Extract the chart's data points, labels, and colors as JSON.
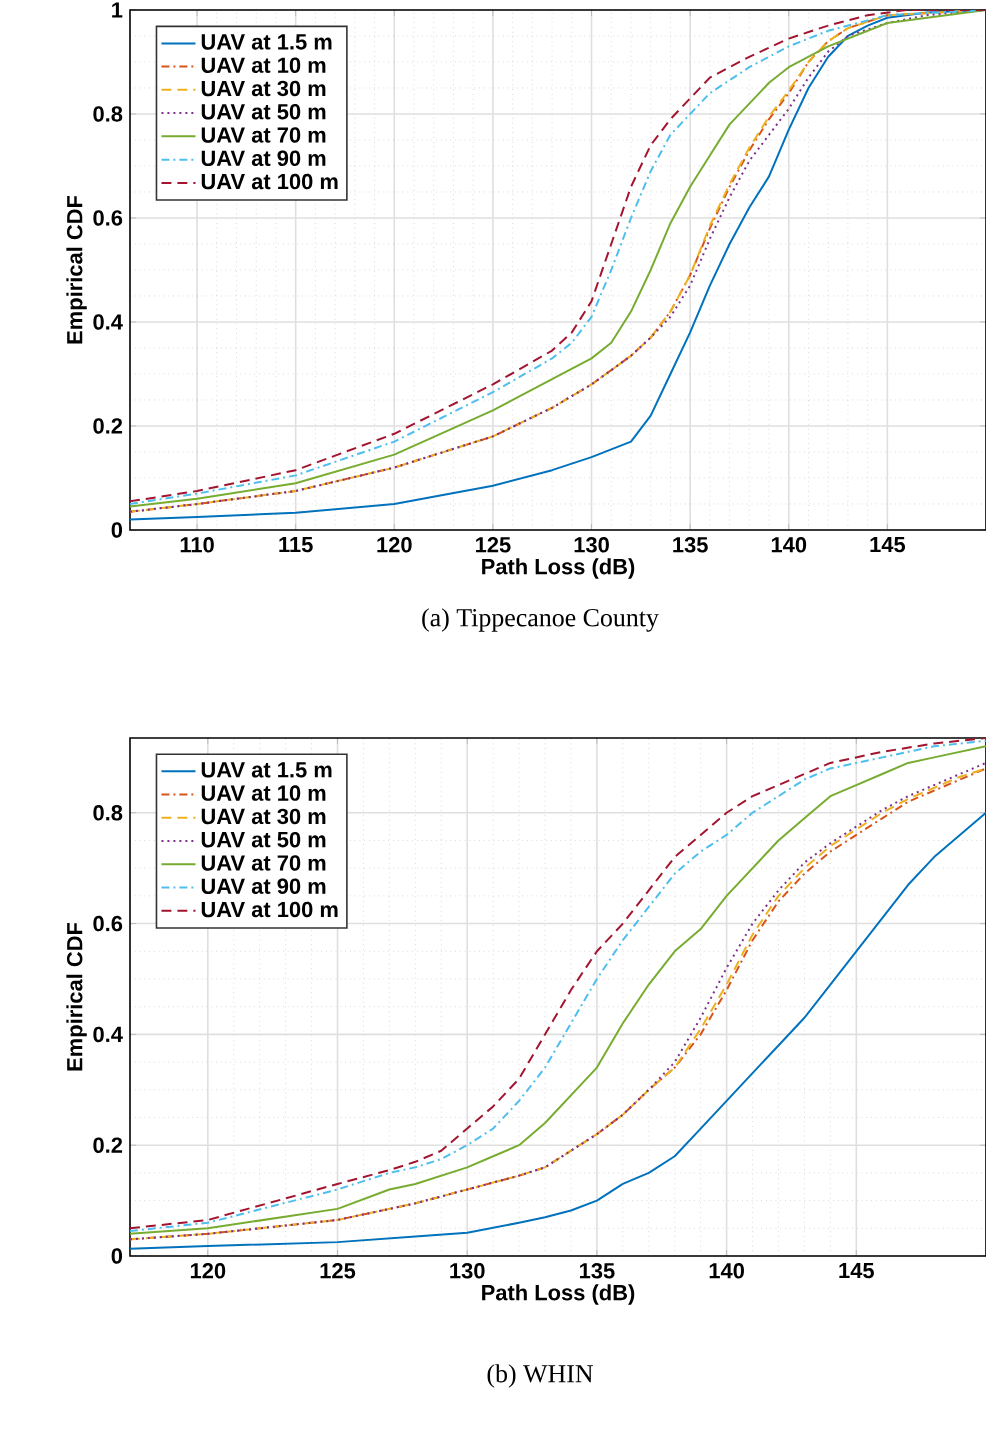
{
  "chart_data": [
    {
      "type": "line",
      "title": "(a) Tippecanoe County",
      "xlabel": "Path Loss (dB)",
      "ylabel": "Empirical CDF",
      "xlim": [
        106.6,
        150
      ],
      "ylim": [
        0,
        1
      ],
      "xticks": [
        110,
        115,
        120,
        125,
        130,
        135,
        140,
        145
      ],
      "yticks": [
        0,
        0.2,
        0.4,
        0.6,
        0.8,
        1
      ],
      "grid": true,
      "legend": "top left",
      "series": [
        {
          "name": "UAV at 1.5 m",
          "color": "#0072bd",
          "line_style": "solid",
          "x": [
            106.6,
            110,
            115,
            120,
            125,
            128,
            130,
            131,
            132,
            133,
            134,
            135,
            136,
            137,
            138,
            139,
            140,
            141,
            142,
            143,
            144,
            145,
            147,
            150
          ],
          "values": [
            0.02,
            0.025,
            0.033,
            0.05,
            0.085,
            0.115,
            0.14,
            0.155,
            0.17,
            0.22,
            0.3,
            0.38,
            0.47,
            0.55,
            0.62,
            0.68,
            0.77,
            0.85,
            0.91,
            0.95,
            0.97,
            0.985,
            0.995,
            1
          ]
        },
        {
          "name": "UAV at 10 m",
          "color": "#d95319",
          "line_style": "dashdot",
          "x": [
            106.6,
            110,
            115,
            120,
            125,
            128,
            130,
            132,
            133,
            134,
            135,
            136,
            137,
            138,
            139,
            140,
            141,
            142,
            143,
            145,
            150
          ],
          "values": [
            0.035,
            0.05,
            0.075,
            0.12,
            0.18,
            0.235,
            0.28,
            0.335,
            0.37,
            0.42,
            0.49,
            0.58,
            0.66,
            0.73,
            0.79,
            0.84,
            0.9,
            0.94,
            0.965,
            0.99,
            1
          ]
        },
        {
          "name": "UAV at 30 m",
          "color": "#edb120",
          "line_style": "dashed",
          "x": [
            106.6,
            110,
            115,
            120,
            125,
            128,
            130,
            132,
            133,
            134,
            135,
            136,
            137,
            138,
            139,
            140,
            141,
            142,
            143,
            145,
            150
          ],
          "values": [
            0.035,
            0.05,
            0.075,
            0.12,
            0.18,
            0.235,
            0.28,
            0.335,
            0.37,
            0.42,
            0.49,
            0.585,
            0.665,
            0.735,
            0.795,
            0.845,
            0.9,
            0.94,
            0.965,
            0.99,
            1
          ]
        },
        {
          "name": "UAV at 50 m",
          "color": "#7e2f8e",
          "line_style": "dotted",
          "x": [
            106.6,
            110,
            115,
            120,
            125,
            128,
            130,
            132,
            133,
            134,
            135,
            136,
            137,
            138,
            139,
            140,
            141,
            142,
            143,
            145,
            147,
            150
          ],
          "values": [
            0.035,
            0.05,
            0.075,
            0.12,
            0.18,
            0.235,
            0.28,
            0.335,
            0.37,
            0.41,
            0.47,
            0.56,
            0.64,
            0.71,
            0.76,
            0.81,
            0.87,
            0.92,
            0.95,
            0.975,
            0.99,
            1
          ]
        },
        {
          "name": "UAV at 70 m",
          "color": "#77ac30",
          "line_style": "solid",
          "x": [
            106.6,
            110,
            115,
            120,
            125,
            128,
            130,
            131,
            132,
            133,
            134,
            135,
            136,
            137,
            138,
            139,
            140,
            142,
            145,
            150
          ],
          "values": [
            0.045,
            0.06,
            0.09,
            0.145,
            0.23,
            0.29,
            0.33,
            0.36,
            0.42,
            0.5,
            0.59,
            0.66,
            0.72,
            0.78,
            0.82,
            0.86,
            0.89,
            0.93,
            0.975,
            1
          ]
        },
        {
          "name": "UAV at 90 m",
          "color": "#4dbeee",
          "line_style": "dashdot",
          "x": [
            106.6,
            110,
            115,
            120,
            125,
            128,
            129,
            130,
            131,
            132,
            133,
            134,
            135,
            136,
            138,
            140,
            142,
            145,
            150
          ],
          "values": [
            0.05,
            0.07,
            0.105,
            0.17,
            0.265,
            0.33,
            0.36,
            0.41,
            0.5,
            0.6,
            0.69,
            0.76,
            0.8,
            0.84,
            0.89,
            0.93,
            0.96,
            0.99,
            1
          ]
        },
        {
          "name": "UAV at 100 m",
          "color": "#a2142f",
          "line_style": "dashed",
          "x": [
            106.6,
            110,
            115,
            120,
            125,
            128,
            129,
            130,
            131,
            132,
            133,
            134,
            135,
            136,
            138,
            140,
            142,
            144,
            146,
            150
          ],
          "values": [
            0.055,
            0.075,
            0.115,
            0.185,
            0.28,
            0.345,
            0.38,
            0.44,
            0.55,
            0.66,
            0.74,
            0.79,
            0.83,
            0.87,
            0.91,
            0.945,
            0.97,
            0.99,
            1,
            1
          ]
        }
      ]
    },
    {
      "type": "line",
      "title": "(b) WHIN",
      "xlabel": "Path Loss (dB)",
      "ylabel": "Empirical CDF",
      "xlim": [
        117,
        150
      ],
      "ylim": [
        0,
        0.935
      ],
      "xticks": [
        120,
        125,
        130,
        135,
        140,
        145
      ],
      "yticks": [
        0,
        0.2,
        0.4,
        0.6,
        0.8
      ],
      "grid": true,
      "legend": "top left",
      "series": [
        {
          "name": "UAV at 1.5 m",
          "color": "#0072bd",
          "line_style": "solid",
          "x": [
            117,
            120,
            125,
            128,
            130,
            132,
            133,
            134,
            135,
            136,
            137,
            138,
            139,
            140,
            141,
            142,
            143,
            144,
            145,
            146,
            147,
            148,
            149,
            150
          ],
          "values": [
            0.013,
            0.018,
            0.025,
            0.035,
            0.042,
            0.06,
            0.07,
            0.082,
            0.1,
            0.13,
            0.15,
            0.18,
            0.23,
            0.28,
            0.33,
            0.38,
            0.43,
            0.49,
            0.55,
            0.61,
            0.67,
            0.72,
            0.76,
            0.8
          ]
        },
        {
          "name": "UAV at 10 m",
          "color": "#d95319",
          "line_style": "dashdot",
          "x": [
            117,
            120,
            125,
            128,
            130,
            132,
            133,
            134,
            135,
            136,
            137,
            138,
            139,
            140,
            141,
            142,
            143,
            144,
            145,
            146,
            147,
            148,
            149,
            150
          ],
          "values": [
            0.03,
            0.04,
            0.065,
            0.095,
            0.12,
            0.145,
            0.16,
            0.19,
            0.22,
            0.255,
            0.3,
            0.34,
            0.4,
            0.48,
            0.57,
            0.64,
            0.69,
            0.73,
            0.76,
            0.79,
            0.82,
            0.84,
            0.86,
            0.88
          ]
        },
        {
          "name": "UAV at 30 m",
          "color": "#edb120",
          "line_style": "dashed",
          "x": [
            117,
            120,
            125,
            128,
            130,
            132,
            133,
            134,
            135,
            136,
            137,
            138,
            139,
            140,
            141,
            142,
            143,
            144,
            145,
            146,
            147,
            148,
            149,
            150
          ],
          "values": [
            0.03,
            0.04,
            0.065,
            0.095,
            0.12,
            0.145,
            0.16,
            0.19,
            0.22,
            0.255,
            0.3,
            0.34,
            0.41,
            0.49,
            0.58,
            0.65,
            0.7,
            0.74,
            0.77,
            0.8,
            0.825,
            0.845,
            0.865,
            0.88
          ]
        },
        {
          "name": "UAV at 50 m",
          "color": "#7e2f8e",
          "line_style": "dotted",
          "x": [
            117,
            120,
            125,
            128,
            130,
            132,
            133,
            134,
            135,
            136,
            137,
            138,
            139,
            140,
            141,
            142,
            143,
            144,
            145,
            146,
            147,
            148,
            149,
            150
          ],
          "values": [
            0.03,
            0.04,
            0.065,
            0.095,
            0.12,
            0.145,
            0.16,
            0.19,
            0.22,
            0.255,
            0.3,
            0.35,
            0.43,
            0.52,
            0.6,
            0.66,
            0.71,
            0.745,
            0.775,
            0.805,
            0.83,
            0.85,
            0.87,
            0.89
          ]
        },
        {
          "name": "UAV at 70 m",
          "color": "#77ac30",
          "line_style": "solid",
          "x": [
            117,
            120,
            125,
            127,
            128,
            130,
            131,
            132,
            133,
            134,
            135,
            136,
            137,
            138,
            139,
            140,
            141,
            142,
            143,
            144,
            145,
            146,
            147,
            148,
            149,
            150
          ],
          "values": [
            0.04,
            0.05,
            0.085,
            0.12,
            0.13,
            0.16,
            0.18,
            0.2,
            0.24,
            0.29,
            0.34,
            0.42,
            0.49,
            0.55,
            0.59,
            0.65,
            0.7,
            0.75,
            0.79,
            0.83,
            0.85,
            0.87,
            0.89,
            0.9,
            0.91,
            0.92
          ]
        },
        {
          "name": "UAV at 90 m",
          "color": "#4dbeee",
          "line_style": "dashdot",
          "x": [
            117,
            120,
            125,
            127,
            128,
            129,
            130,
            131,
            132,
            133,
            134,
            135,
            136,
            137,
            138,
            139,
            140,
            141,
            142,
            143,
            144,
            145,
            146,
            148,
            150
          ],
          "values": [
            0.045,
            0.06,
            0.12,
            0.15,
            0.16,
            0.175,
            0.2,
            0.23,
            0.28,
            0.34,
            0.42,
            0.5,
            0.57,
            0.63,
            0.69,
            0.73,
            0.76,
            0.8,
            0.83,
            0.86,
            0.88,
            0.89,
            0.9,
            0.92,
            0.93
          ]
        },
        {
          "name": "UAV at 100 m",
          "color": "#a2142f",
          "line_style": "dashed",
          "x": [
            117,
            120,
            125,
            127,
            128,
            129,
            130,
            131,
            132,
            133,
            134,
            135,
            136,
            137,
            138,
            139,
            140,
            141,
            142,
            143,
            144,
            145,
            146,
            148,
            150
          ],
          "values": [
            0.05,
            0.065,
            0.13,
            0.155,
            0.17,
            0.19,
            0.23,
            0.27,
            0.32,
            0.4,
            0.48,
            0.55,
            0.6,
            0.66,
            0.72,
            0.76,
            0.8,
            0.83,
            0.85,
            0.87,
            0.89,
            0.9,
            0.91,
            0.925,
            0.935
          ]
        }
      ]
    }
  ]
}
